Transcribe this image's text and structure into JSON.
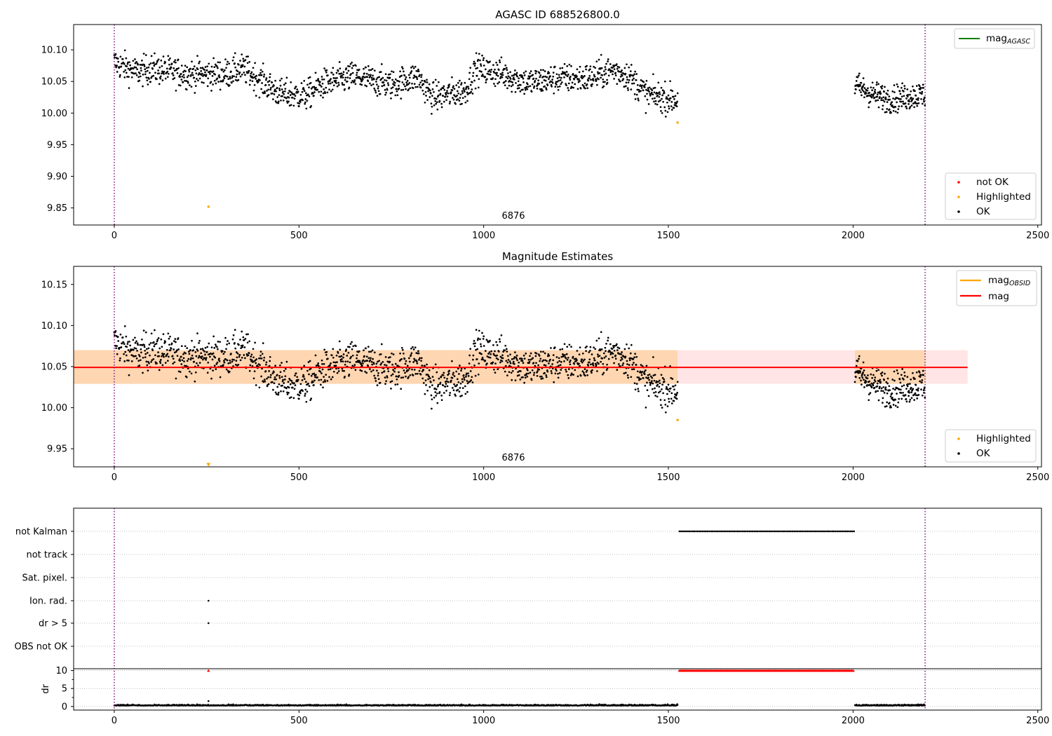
{
  "chart_data": [
    {
      "type": "scatter",
      "title": "AGASC ID 688526800.0",
      "xlim": [
        -110,
        2510
      ],
      "ylim": [
        9.823,
        10.14
      ],
      "xticks": [
        0,
        500,
        1000,
        1500,
        2000,
        2500
      ],
      "yticks": [
        9.85,
        9.9,
        9.95,
        10.0,
        10.05,
        10.1
      ],
      "ytick_labels": [
        "9.85",
        "9.90",
        "9.95",
        "10.00",
        "10.05",
        "10.10"
      ],
      "vlines": [
        0,
        2195
      ],
      "annotation": "6876",
      "annotation_x": 1100,
      "legend_upper": [
        {
          "name": "mag",
          "sub": "AGASC",
          "color": "#008000"
        }
      ],
      "legend_lower": [
        {
          "name": "not OK",
          "color": "#ff0000"
        },
        {
          "name": "Highlighted",
          "color": "#ffa500"
        },
        {
          "name": "OK",
          "color": "#000000"
        }
      ],
      "grid": false,
      "highlighted_points": [
        {
          "x": 255,
          "y": 9.852
        },
        {
          "x": 1525,
          "y": 9.985
        }
      ],
      "ok_series_trend": [
        {
          "x": 0,
          "y": 10.08
        },
        {
          "x": 60,
          "y": 10.065
        },
        {
          "x": 100,
          "y": 10.07
        },
        {
          "x": 200,
          "y": 10.062
        },
        {
          "x": 300,
          "y": 10.062
        },
        {
          "x": 350,
          "y": 10.07
        },
        {
          "x": 400,
          "y": 10.05
        },
        {
          "x": 450,
          "y": 10.03
        },
        {
          "x": 520,
          "y": 10.028
        },
        {
          "x": 560,
          "y": 10.045
        },
        {
          "x": 650,
          "y": 10.058
        },
        {
          "x": 750,
          "y": 10.045
        },
        {
          "x": 820,
          "y": 10.058
        },
        {
          "x": 860,
          "y": 10.025
        },
        {
          "x": 950,
          "y": 10.035
        },
        {
          "x": 980,
          "y": 10.07
        },
        {
          "x": 1050,
          "y": 10.062
        },
        {
          "x": 1120,
          "y": 10.048
        },
        {
          "x": 1200,
          "y": 10.055
        },
        {
          "x": 1280,
          "y": 10.055
        },
        {
          "x": 1350,
          "y": 10.068
        },
        {
          "x": 1390,
          "y": 10.06
        },
        {
          "x": 1440,
          "y": 10.03
        },
        {
          "x": 1525,
          "y": 10.02
        },
        {
          "x": 2005,
          "y": 10.045
        },
        {
          "x": 2050,
          "y": 10.03
        },
        {
          "x": 2100,
          "y": 10.022
        },
        {
          "x": 2195,
          "y": 10.03
        }
      ]
    },
    {
      "type": "scatter",
      "title": "Magnitude Estimates",
      "xlim": [
        -110,
        2510
      ],
      "ylim": [
        9.928,
        10.172
      ],
      "xticks": [
        0,
        500,
        1000,
        1500,
        2000,
        2500
      ],
      "yticks": [
        9.95,
        10.0,
        10.05,
        10.1,
        10.15
      ],
      "ytick_labels": [
        "9.95",
        "10.00",
        "10.05",
        "10.10",
        "10.15"
      ],
      "vlines": [
        0,
        2195
      ],
      "annotation": "6876",
      "annotation_x": 1100,
      "mag_line": {
        "y": 10.049,
        "x_end": 2310,
        "band": [
          10.029,
          10.07
        ],
        "color": "#ff0000"
      },
      "mag_obsid_band": {
        "x_start": -110,
        "x_end": 1525,
        "band": [
          10.029,
          10.07
        ],
        "color": "#ffa500"
      },
      "legend_upper": [
        {
          "name": "mag",
          "sub": "OBSID",
          "color": "#ffa500"
        },
        {
          "name": "mag",
          "sub": "",
          "color": "#ff0000"
        }
      ],
      "legend_lower": [
        {
          "name": "Highlighted",
          "color": "#ffa500"
        },
        {
          "name": "OK",
          "color": "#000000"
        }
      ],
      "grid": false,
      "highlighted_points": [
        {
          "x": 255,
          "y": 9.931
        },
        {
          "x": 1525,
          "y": 9.985
        }
      ]
    },
    {
      "type": "scatter",
      "xlim": [
        -110,
        2510
      ],
      "xticks": [
        0,
        500,
        1000,
        1500,
        2000,
        2500
      ],
      "vlines": [
        0,
        2195
      ],
      "flag_rows": [
        "not Kalman",
        "not track",
        "Sat. pixel.",
        "Ion. rad.",
        "dr > 5",
        "OBS not OK"
      ],
      "flag_ranges": [
        {
          "row": "not Kalman",
          "x": [
            1530,
            2003
          ]
        }
      ],
      "flag_points": [
        {
          "row": "Ion. rad.",
          "x": 255
        },
        {
          "row": "dr > 5",
          "x": 255
        }
      ],
      "dr_panel": {
        "ylabel": "dr",
        "ylim": [
          -1,
          10.5
        ],
        "yticks": [
          0,
          5,
          10
        ],
        "ytick_labels": [
          "0",
          "5",
          "10"
        ],
        "clipped_range": {
          "x": [
            1530,
            2003
          ],
          "y": 10
        },
        "clipped_point": {
          "x": 255,
          "y": 10
        },
        "spike": {
          "x": 255,
          "y": 1.5
        }
      }
    }
  ]
}
